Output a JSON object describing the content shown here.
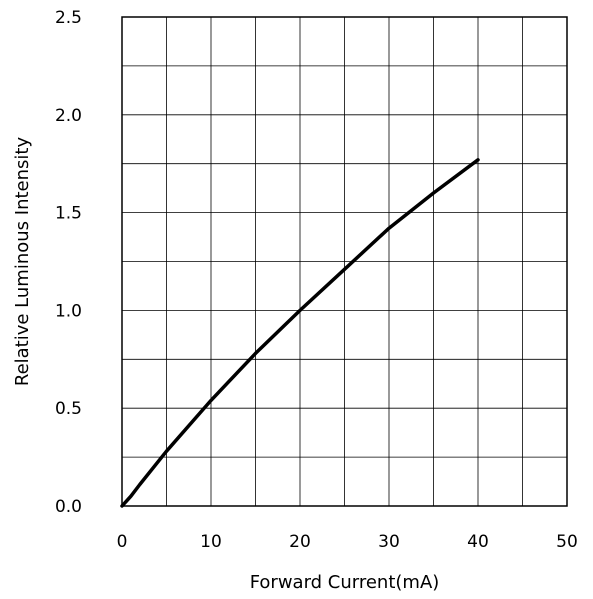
{
  "chart_data": {
    "type": "line",
    "title": "",
    "xlabel": "Forward Current(mA)",
    "ylabel": "Relative Luminous Intensity",
    "xlim": [
      0,
      50
    ],
    "ylim": [
      0,
      2.5
    ],
    "grid": true,
    "x_ticks": [
      0,
      10,
      20,
      30,
      40,
      50
    ],
    "x_tick_labels": [
      "0",
      "10",
      "20",
      "30",
      "40",
      "50"
    ],
    "y_ticks": [
      0,
      0.5,
      1.0,
      1.5,
      2.0,
      2.5
    ],
    "y_tick_labels": [
      "0.0",
      "0.5",
      "1.0",
      "1.5",
      "2.0",
      "2.5"
    ],
    "series": [
      {
        "color": "#000000",
        "x": [
          0,
          1,
          2,
          5,
          10,
          15,
          20,
          25,
          30,
          35,
          40
        ],
        "y": [
          0,
          0.05,
          0.11,
          0.28,
          0.54,
          0.78,
          1.0,
          1.21,
          1.42,
          1.6,
          1.77
        ]
      }
    ]
  }
}
